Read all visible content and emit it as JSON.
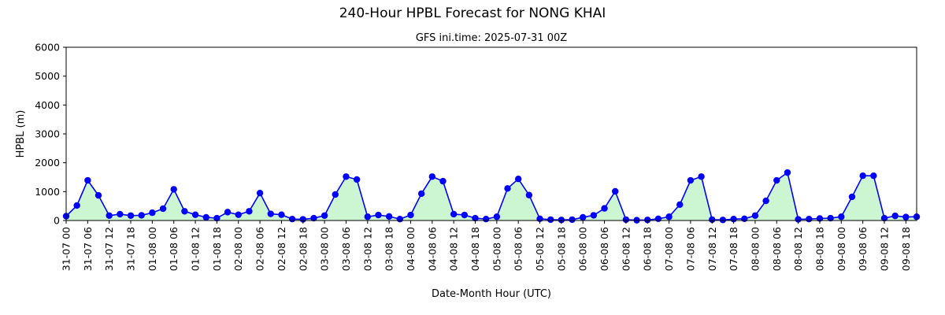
{
  "chart_data": {
    "type": "line",
    "title": "240-Hour HPBL Forecast for NONG KHAI",
    "subtitle": "GFS ini.time: 2025-07-31 00Z",
    "xlabel": "Date-Month Hour (UTC)",
    "ylabel": "HPBL (m)",
    "ylim": [
      0,
      6000
    ],
    "yticks": [
      0,
      1000,
      2000,
      3000,
      4000,
      5000,
      6000
    ],
    "xtick_labels": [
      "31-07 00",
      "31-07 06",
      "31-07 12",
      "31-07 18",
      "01-08 00",
      "01-08 06",
      "01-08 12",
      "01-08 18",
      "02-08 00",
      "02-08 06",
      "02-08 12",
      "02-08 18",
      "03-08 00",
      "03-08 06",
      "03-08 12",
      "03-08 18",
      "04-08 00",
      "04-08 06",
      "04-08 12",
      "04-08 18",
      "05-08 00",
      "05-08 06",
      "05-08 12",
      "05-08 18",
      "06-08 00",
      "06-08 06",
      "06-08 12",
      "06-08 18",
      "07-08 00",
      "07-08 06",
      "07-08 12",
      "07-08 18",
      "08-08 00",
      "08-08 06",
      "08-08 12",
      "08-08 18",
      "09-08 00",
      "09-08 06",
      "09-08 12",
      "09-08 18"
    ],
    "x_step_hours": 3,
    "series": [
      {
        "name": "",
        "values": [
          150,
          520,
          1390,
          870,
          170,
          220,
          170,
          180,
          270,
          410,
          1080,
          320,
          200,
          110,
          80,
          290,
          200,
          320,
          950,
          230,
          200,
          50,
          40,
          80,
          170,
          900,
          1520,
          1420,
          130,
          190,
          140,
          50,
          190,
          930,
          1520,
          1360,
          220,
          190,
          80,
          50,
          130,
          1110,
          1440,
          880,
          60,
          30,
          20,
          30,
          110,
          180,
          420,
          1010,
          30,
          10,
          20,
          60,
          130,
          550,
          1390,
          1520,
          30,
          20,
          50,
          60,
          170,
          680,
          1390,
          1660,
          40,
          50,
          70,
          80,
          130,
          820,
          1550,
          1550,
          80,
          160,
          120,
          130
        ]
      }
    ],
    "colors": {
      "line": "#0000ff",
      "marker": "#0000ff",
      "fill": "#ccf5d2"
    },
    "grid": false,
    "legend": "none"
  }
}
